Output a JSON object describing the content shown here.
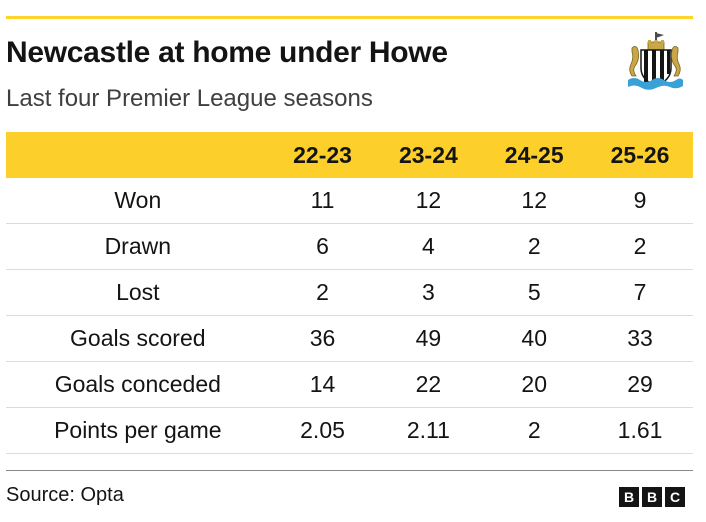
{
  "header": {
    "title": "Newcastle at home under Howe",
    "subtitle": "Last four Premier League seasons"
  },
  "crest": {
    "icon": "newcastle-united-crest-icon"
  },
  "colors": {
    "accent": "#fdcf2a",
    "text": "#141414"
  },
  "chart_data": {
    "type": "table",
    "columns": [
      "",
      "22-23",
      "23-24",
      "24-25",
      "25-26"
    ],
    "rows": [
      {
        "label": "Won",
        "values": [
          "11",
          "12",
          "12",
          "9"
        ]
      },
      {
        "label": "Drawn",
        "values": [
          "6",
          "4",
          "2",
          "2"
        ]
      },
      {
        "label": "Lost",
        "values": [
          "2",
          "3",
          "5",
          "7"
        ]
      },
      {
        "label": "Goals scored",
        "values": [
          "36",
          "49",
          "40",
          "33"
        ]
      },
      {
        "label": "Goals conceded",
        "values": [
          "14",
          "22",
          "20",
          "29"
        ]
      },
      {
        "label": "Points per game",
        "values": [
          "2.05",
          "2.11",
          "2",
          "1.61"
        ]
      }
    ]
  },
  "footer": {
    "source": "Source: Opta",
    "logo": [
      "B",
      "B",
      "C"
    ]
  }
}
